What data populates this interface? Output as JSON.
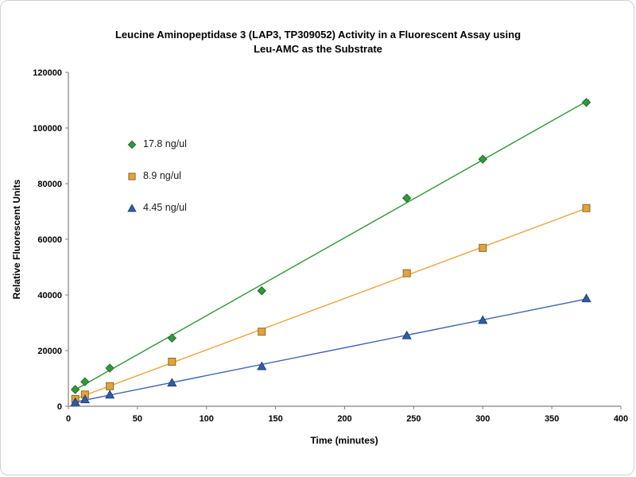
{
  "figure": {
    "background": "#ffffff",
    "border_color": "#d0d0d0"
  },
  "chart_data": {
    "type": "scatter",
    "title": "Leucine Aminopeptidase 3 (LAP3, TP309052) Activity in a Fluorescent Assay using Leu-AMC as the Substrate",
    "title_lines": [
      "Leucine Aminopeptidase 3 (LAP3, TP309052) Activity in a Fluorescent Assay using",
      "Leu-AMC as the Substrate"
    ],
    "xlabel": "Time (minutes)",
    "ylabel": "Relative Fluorescent Units",
    "xlim": [
      0,
      400
    ],
    "ylim": [
      0,
      120000
    ],
    "x_ticks": [
      0,
      50,
      100,
      150,
      200,
      250,
      300,
      350,
      400
    ],
    "y_ticks": [
      0,
      20000,
      40000,
      60000,
      80000,
      100000,
      120000
    ],
    "grid": false,
    "legend_position": "inside-upper-left",
    "axis_color": "#808080",
    "text_color": "#000000",
    "series": [
      {
        "name": "17.8 ng/ul",
        "marker": "diamond",
        "marker_color": "#33993B",
        "marker_edge_color": "#1E6B2A",
        "line_color": "#2E9933",
        "trendline": true,
        "x": [
          5,
          12,
          30,
          75,
          140,
          245,
          300,
          375
        ],
        "y": [
          6000,
          8800,
          13700,
          24500,
          41500,
          74800,
          88800,
          109200
        ]
      },
      {
        "name": "8.9 ng/ul",
        "marker": "square",
        "marker_color": "#E2A33C",
        "marker_edge_color": "#8F6A1F",
        "line_color": "#EDA338",
        "trendline": true,
        "x": [
          5,
          12,
          30,
          75,
          140,
          245,
          300,
          375
        ],
        "y": [
          2600,
          4200,
          7200,
          16000,
          26800,
          47800,
          56900,
          71200
        ]
      },
      {
        "name": "4.45 ng/ul",
        "marker": "triangle",
        "marker_color": "#2F5EA8",
        "marker_edge_color": "#1E3F78",
        "line_color": "#3A66B0",
        "trendline": true,
        "x": [
          5,
          12,
          30,
          75,
          140,
          245,
          300,
          375
        ],
        "y": [
          1500,
          2500,
          4200,
          8500,
          14400,
          25500,
          31000,
          38800
        ]
      }
    ]
  }
}
